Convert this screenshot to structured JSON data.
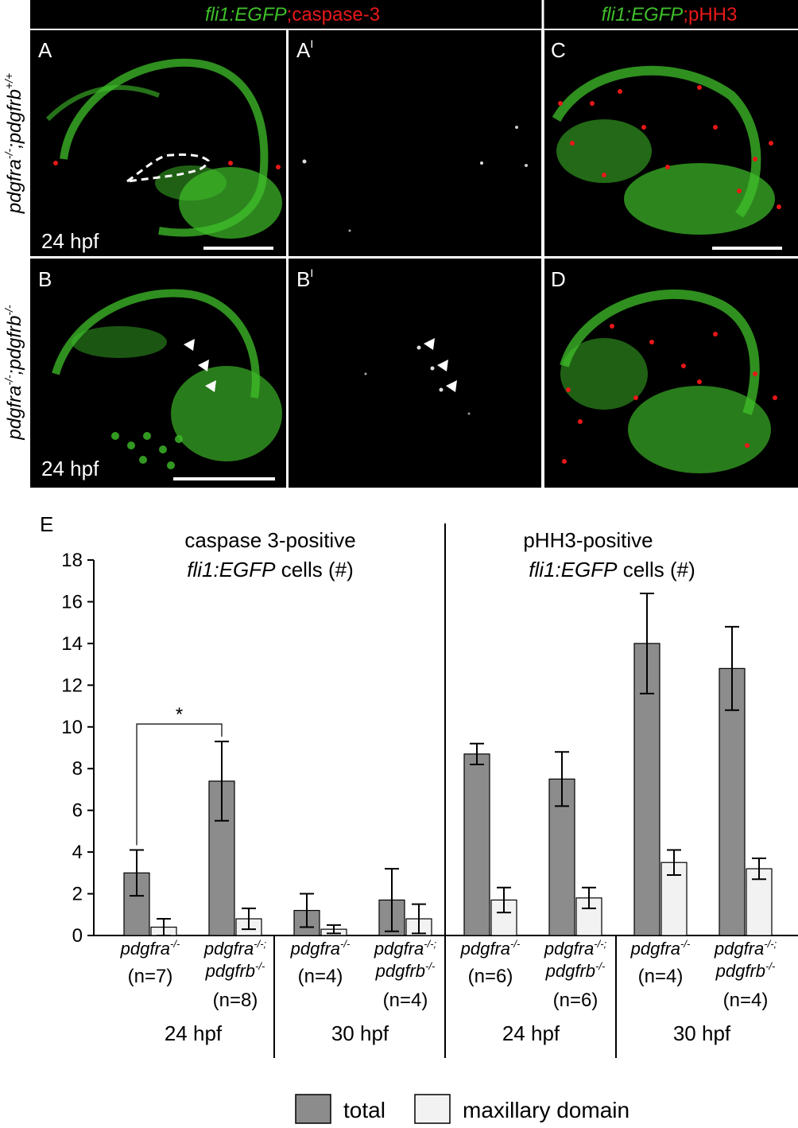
{
  "panel_header": {
    "left": {
      "gene": "fli1:EGFP",
      "separator": ";",
      "marker": "caspase-3"
    },
    "right": {
      "gene": "fli1:EGFP",
      "separator": ";",
      "marker": "pHH3"
    }
  },
  "panels": {
    "A": "A",
    "A_prime": "A",
    "B": "B",
    "B_prime": "B",
    "C": "C",
    "D": "D",
    "prime_mark": "I",
    "stage_A": "24 hpf",
    "stage_B": "24 hpf"
  },
  "row_labels": {
    "row1": {
      "base1": "pdgfra",
      "sup1": "-/-",
      "sep": ";",
      "base2": "pdgfrb",
      "sup2": "+/+"
    },
    "row2": {
      "base1": "pdgfra",
      "sup1": "-/-",
      "sep": ";",
      "base2": "pdgfrb",
      "sup2": "-/-"
    }
  },
  "colors": {
    "egfp_green": "#3fbf2a",
    "red_signal": "#e81818",
    "total_bar": "#8c8c8c",
    "maxillary_bar": "#f2f2f2"
  },
  "chart_data": {
    "type": "bar",
    "panel_letter": "E",
    "ylim": [
      0,
      18
    ],
    "yticks": [
      "0",
      "2",
      "4",
      "6",
      "8",
      "10",
      "12",
      "14",
      "16",
      "18"
    ],
    "section_titles": [
      {
        "line1": "caspase 3-positive",
        "line2_italic": "fli1:EGFP",
        "line2_rest": " cells (#)"
      },
      {
        "line1": "pHH3-positive",
        "line2_italic": "fli1:EGFP",
        "line2_rest": " cells (#)"
      }
    ],
    "groups": [
      {
        "genotype_line1": "pdgfra",
        "sup1": "-/-",
        "genotype_line2": "",
        "sup2": "",
        "n": "(n=7)"
      },
      {
        "genotype_line1": "pdgfra",
        "sup1": "-/-;",
        "genotype_line2": "pdgfrb",
        "sup2": "-/-",
        "n": "(n=8)"
      },
      {
        "genotype_line1": "pdgfra",
        "sup1": "-/-",
        "genotype_line2": "",
        "sup2": "",
        "n": "(n=4)"
      },
      {
        "genotype_line1": "pdgfra",
        "sup1": "-/-;",
        "genotype_line2": "pdgfrb",
        "sup2": "-/-",
        "n": "(n=4)"
      },
      {
        "genotype_line1": "pdgfra",
        "sup1": "-/-",
        "genotype_line2": "",
        "sup2": "",
        "n": "(n=6)"
      },
      {
        "genotype_line1": "pdgfra",
        "sup1": "-/-;",
        "genotype_line2": "pdgfrb",
        "sup2": "-/-",
        "n": "(n=6)"
      },
      {
        "genotype_line1": "pdgfra",
        "sup1": "-/-",
        "genotype_line2": "",
        "sup2": "",
        "n": "(n=4)"
      },
      {
        "genotype_line1": "pdgfra",
        "sup1": "-/-;",
        "genotype_line2": "pdgfrb",
        "sup2": "-/-",
        "n": "(n=4)"
      }
    ],
    "stages": [
      "24 hpf",
      "30 hpf",
      "24 hpf",
      "30 hpf"
    ],
    "series": [
      {
        "name": "total",
        "values": [
          3.0,
          7.4,
          1.2,
          1.7,
          8.7,
          7.5,
          14.0,
          12.8
        ],
        "errors": [
          1.1,
          1.9,
          0.8,
          1.5,
          0.5,
          1.3,
          2.4,
          2.0
        ]
      },
      {
        "name": "maxillary domain",
        "values": [
          0.4,
          0.8,
          0.3,
          0.8,
          1.7,
          1.8,
          3.5,
          3.2
        ],
        "errors": [
          0.4,
          0.5,
          0.2,
          0.7,
          0.6,
          0.5,
          0.6,
          0.5
        ]
      }
    ],
    "significance": {
      "label": "*",
      "between": [
        0,
        1
      ]
    }
  }
}
